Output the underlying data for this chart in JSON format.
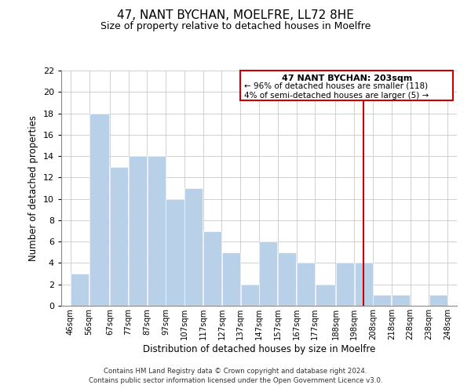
{
  "title": "47, NANT BYCHAN, MOELFRE, LL72 8HE",
  "subtitle": "Size of property relative to detached houses in Moelfre",
  "xlabel": "Distribution of detached houses by size in Moelfre",
  "ylabel": "Number of detached properties",
  "bar_lefts": [
    46,
    56,
    67,
    77,
    87,
    97,
    107,
    117,
    127,
    137,
    147,
    157,
    167,
    177,
    188,
    198,
    208,
    218,
    228,
    238
  ],
  "bar_rights": [
    56,
    67,
    77,
    87,
    97,
    107,
    117,
    127,
    137,
    147,
    157,
    167,
    177,
    188,
    198,
    208,
    218,
    228,
    238,
    248
  ],
  "bar_heights": [
    3,
    18,
    13,
    14,
    14,
    10,
    11,
    7,
    5,
    2,
    6,
    5,
    4,
    2,
    4,
    4,
    1,
    1,
    0,
    1
  ],
  "bar_color": "#b8d0e8",
  "grid_color": "#d0d0d0",
  "background_color": "#ffffff",
  "ylim": [
    0,
    22
  ],
  "yticks": [
    0,
    2,
    4,
    6,
    8,
    10,
    12,
    14,
    16,
    18,
    20,
    22
  ],
  "property_line_x": 203,
  "property_line_color": "#cc0000",
  "annotation_title": "47 NANT BYCHAN: 203sqm",
  "annotation_line1": "← 96% of detached houses are smaller (118)",
  "annotation_line2": "4% of semi-detached houses are larger (5) →",
  "annotation_box_color": "#cc0000",
  "footer_line1": "Contains HM Land Registry data © Crown copyright and database right 2024.",
  "footer_line2": "Contains public sector information licensed under the Open Government Licence v3.0.",
  "tick_labels": [
    "46sqm",
    "56sqm",
    "67sqm",
    "77sqm",
    "87sqm",
    "97sqm",
    "107sqm",
    "117sqm",
    "127sqm",
    "137sqm",
    "147sqm",
    "157sqm",
    "167sqm",
    "177sqm",
    "188sqm",
    "198sqm",
    "208sqm",
    "218sqm",
    "228sqm",
    "238sqm",
    "248sqm"
  ]
}
